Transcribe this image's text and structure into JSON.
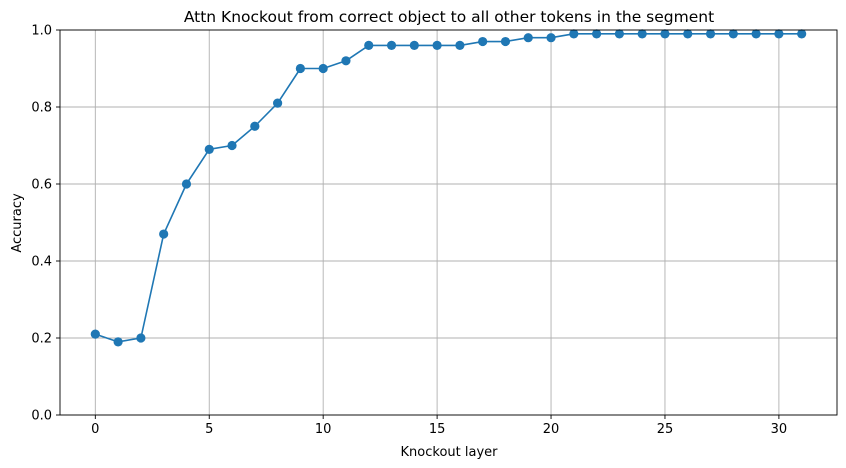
{
  "chart_data": {
    "type": "line",
    "title": "Attn Knockout from correct object to all other tokens in the segment",
    "xlabel": "Knockout layer",
    "ylabel": "Accuracy",
    "xlim": [
      -1.55,
      32.55
    ],
    "ylim": [
      0,
      1.0
    ],
    "xticks": [
      0,
      5,
      10,
      15,
      20,
      25,
      30
    ],
    "yticks": [
      0.0,
      0.2,
      0.4,
      0.6,
      0.8,
      1.0
    ],
    "xtick_labels": [
      "0",
      "5",
      "10",
      "15",
      "20",
      "25",
      "30"
    ],
    "ytick_labels": [
      "0.0",
      "0.2",
      "0.4",
      "0.6",
      "0.8",
      "1.0"
    ],
    "grid": true,
    "series": [
      {
        "color": "#1f77b4",
        "marker": "circle",
        "x": [
          0,
          1,
          2,
          3,
          4,
          5,
          6,
          7,
          8,
          9,
          10,
          11,
          12,
          13,
          14,
          15,
          16,
          17,
          18,
          19,
          20,
          21,
          22,
          23,
          24,
          25,
          26,
          27,
          28,
          29,
          30,
          31
        ],
        "values": [
          0.21,
          0.19,
          0.2,
          0.47,
          0.6,
          0.69,
          0.7,
          0.75,
          0.81,
          0.9,
          0.9,
          0.92,
          0.96,
          0.96,
          0.96,
          0.96,
          0.96,
          0.97,
          0.97,
          0.98,
          0.98,
          0.99,
          0.99,
          0.99,
          0.99,
          0.99,
          0.99,
          0.99,
          0.99,
          0.99,
          0.99,
          0.99
        ]
      }
    ]
  }
}
